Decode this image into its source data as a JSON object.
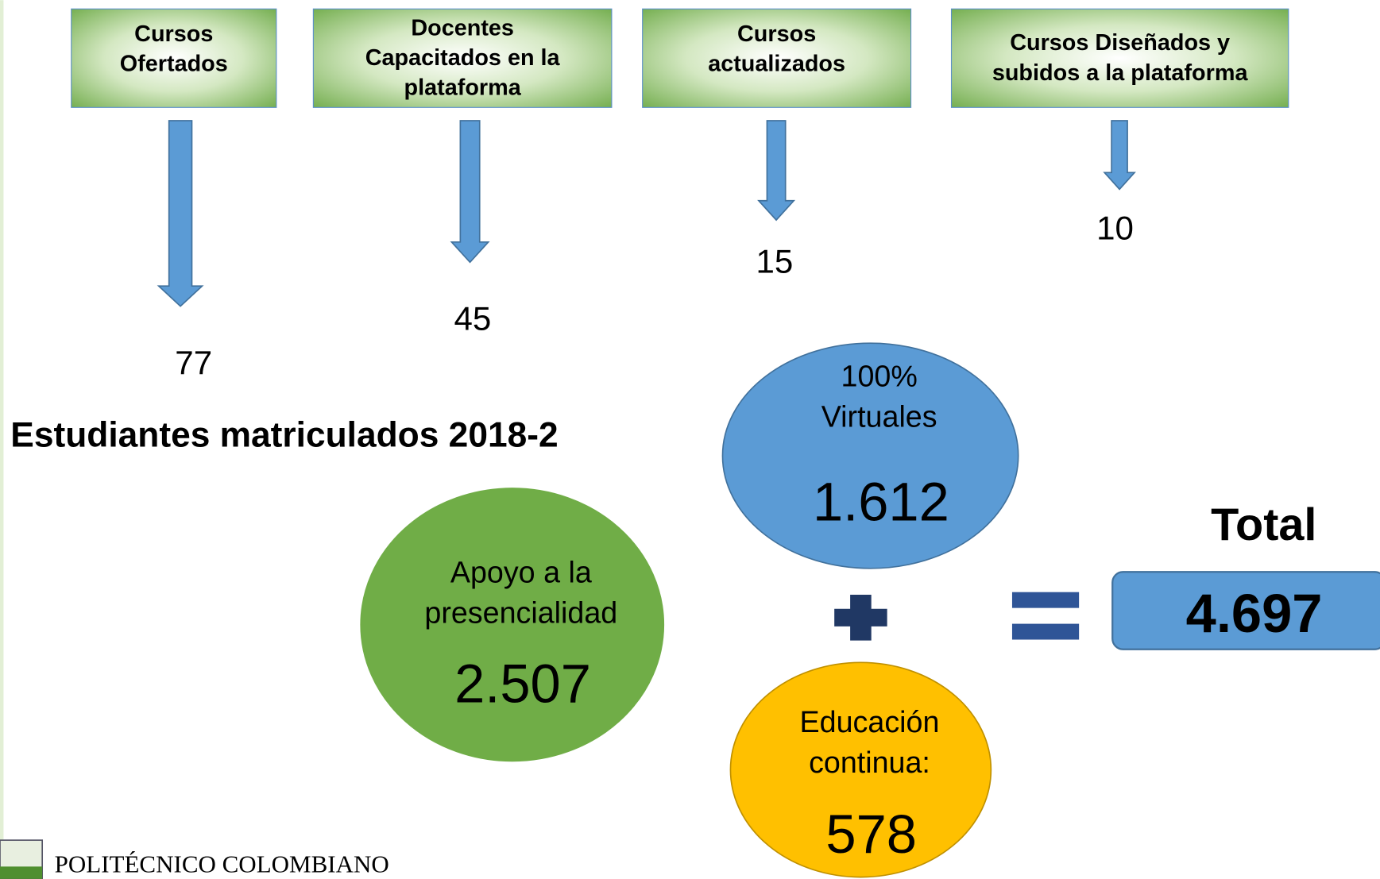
{
  "boxes": [
    {
      "lines": [
        "Cursos",
        "Ofertados"
      ],
      "value": "77"
    },
    {
      "lines": [
        "Docentes",
        "Capacitados en la",
        "plataforma"
      ],
      "value": "45"
    },
    {
      "lines": [
        "Cursos",
        "actualizados"
      ],
      "value": "15"
    },
    {
      "lines": [
        "Cursos Diseñados y",
        "subidos a la plataforma"
      ],
      "value": "10"
    }
  ],
  "section_title": "Estudiantes matriculados 2018-2",
  "circles": [
    {
      "lines": [
        "Apoyo a la",
        "presencialidad"
      ],
      "value": "2.507"
    },
    {
      "lines": [
        "100%",
        "Virtuales"
      ],
      "value": "1.612"
    },
    {
      "lines": [
        "Educación",
        "continua:"
      ],
      "value": "578"
    }
  ],
  "total": {
    "label": "Total",
    "value": "4.697"
  },
  "logo": "POLITÉCNICO COLOMBIANO"
}
